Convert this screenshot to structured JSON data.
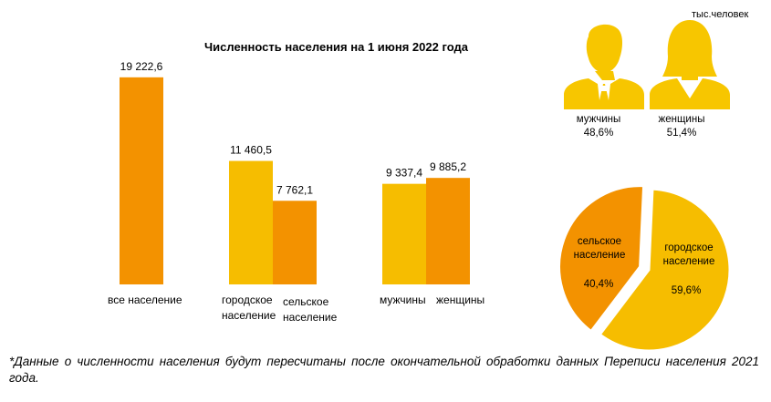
{
  "unit_label": "тыс.человек",
  "chart_data": [
    {
      "type": "bar",
      "title": "Численность населения на 1 июня 2022 года",
      "ylim": [
        0,
        22000
      ],
      "groups": [
        {
          "bars": [
            {
              "label": "все население",
              "value": 19222.6,
              "value_label": "19 222,6",
              "color": "#f39200"
            }
          ]
        },
        {
          "bars": [
            {
              "label": "городское население",
              "value": 11460.5,
              "value_label": "11 460,5",
              "color": "#f6bd00"
            },
            {
              "label": "сельское население",
              "value": 7762.1,
              "value_label": "7 762,1",
              "color": "#f39200"
            }
          ]
        },
        {
          "bars": [
            {
              "label": "мужчины",
              "value": 9337.4,
              "value_label": "9 337,4",
              "color": "#f6bd00"
            },
            {
              "label": "женщины",
              "value": 9885.2,
              "value_label": "9 885,2",
              "color": "#f39200"
            }
          ]
        }
      ],
      "category_labels": {
        "all": "все население",
        "urban_line1": "городское",
        "urban_line2": "население",
        "rural_line1": "сельское",
        "rural_line2": "население",
        "men": "мужчины",
        "women": "женщины"
      }
    },
    {
      "type": "pie",
      "slices": [
        {
          "label_line1": "городское",
          "label_line2": "население",
          "value": 59.6,
          "value_label": "59,6%",
          "color": "#f6bd00"
        },
        {
          "label_line1": "сельское",
          "label_line2": "население",
          "value": 40.4,
          "value_label": "40,4%",
          "color": "#f39200"
        }
      ]
    }
  ],
  "gender": {
    "men": {
      "label": "мужчины",
      "percent": "48,6%",
      "icon": "man-silhouette-icon"
    },
    "women": {
      "label": "женщины",
      "percent": "51,4%",
      "icon": "woman-silhouette-icon"
    }
  },
  "footnote": "*Данные о численности населения будут пересчитаны после окончательной обработки данных Переписи населения 2021 года.",
  "colors": {
    "orange": "#f39200",
    "yellow": "#f6bd00",
    "icon": "#f7c600"
  }
}
